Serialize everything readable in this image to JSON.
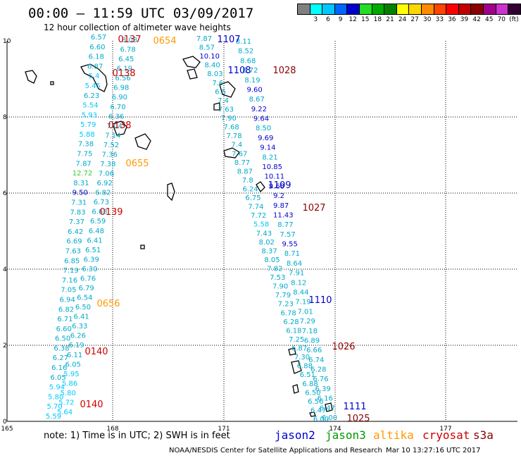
{
  "header": {
    "title": "00:00 – 11:59 UTC 03/09/2017",
    "subtitle": "12 hour collection of altimeter wave heights"
  },
  "scale": {
    "colors": [
      "#808080",
      "#00ffff",
      "#00c8ff",
      "#0066ff",
      "#0000cd",
      "#22dd22",
      "#00aa00",
      "#008000",
      "#ffff00",
      "#ffd700",
      "#ff8c00",
      "#ff4500",
      "#ff0000",
      "#c00000",
      "#8b0000",
      "#a0008a",
      "#cc33cc",
      "#330033",
      "#000000"
    ],
    "labels": [
      "",
      "3",
      "6",
      "9",
      "12",
      "15",
      "18",
      "21",
      "24",
      "27",
      "30",
      "33",
      "36",
      "39",
      "42",
      "45",
      "70",
      "(ft)",
      ""
    ]
  },
  "axes": {
    "x_ticks": [
      "165",
      "168",
      "171",
      "174",
      "177"
    ],
    "y_ticks": [
      "10",
      "8",
      "6",
      "4",
      "2",
      "0"
    ]
  },
  "tracks": [
    {
      "sat": "cryosat",
      "color": "#cc0000",
      "values": [
        "6.57",
        "6.60",
        "6.18",
        "6.87",
        "5.4",
        "5.45",
        "6.23",
        "5.54",
        "5.93",
        "5.79",
        "5.88",
        "7.38",
        "7.75",
        "7.87",
        "12.72",
        "8.31",
        "9.50",
        "7.31",
        "7.83",
        "7.37",
        "6.42",
        "6.69",
        "7.63",
        "6.85",
        "7.19",
        "7.16",
        "7.05",
        "6.94",
        "6.82",
        "6.71",
        "6.60",
        "6.50",
        "6.38",
        "6.27",
        "6.16",
        "6.05",
        "5.94",
        "5.80",
        "5.70",
        "5.59"
      ]
    },
    {
      "sat": "cryosat",
      "color": "#cc0000",
      "values": [
        "8.08",
        "6.78",
        "6.45",
        "6.19",
        "6.56",
        "6.98",
        "6.90",
        "6.70",
        "6.36",
        "7.04",
        "7.14",
        "7.52",
        "7.36",
        "7.38",
        "7.06",
        "6.92",
        "6.82",
        "6.73",
        "6.63",
        "6.59",
        "6.48",
        "6.41",
        "6.51",
        "6.39",
        "6.30",
        "6.76",
        "6.79",
        "6.54",
        "6.50",
        "6.41",
        "6.33",
        "6.26",
        "6.19",
        "6.11",
        "6.05",
        "5.95",
        "5.86",
        "5.80",
        "5.72",
        "5.64"
      ]
    },
    {
      "sat": "jason2",
      "color": "#0000cc",
      "values": [
        "7.87",
        "8.57",
        "10.10",
        "8.40",
        "8.03",
        "7.6",
        "6.5",
        "7.4",
        "7.63",
        "7.90",
        "7.68",
        "7.78",
        "7.4",
        "7.67",
        "8.77",
        "8.87",
        "7.8",
        "6.24",
        "6.75",
        "7.74",
        "7.72",
        "5.58",
        "7.43",
        "8.02",
        "8.37",
        "8.05",
        "7.82",
        "7.53",
        "7.90",
        "7.79",
        "7.23",
        "6.78",
        "6.28",
        "6.18",
        "7.25",
        "6.87",
        "7.30",
        "6.88",
        "6.51",
        "6.88",
        "6.50",
        "6.56",
        "6.47",
        "6.00"
      ]
    },
    {
      "sat": "jason2",
      "color": "#0000cc",
      "values": [
        "8.11",
        "8.52",
        "8.68",
        "8.72",
        "8.19",
        "9.60",
        "8.67",
        "9.22",
        "9.64",
        "8.50",
        "9.69",
        "9.14",
        "8.21",
        "10.85",
        "10.11",
        "9.68",
        "9.2",
        "9.87",
        "11.43",
        "8.77",
        "7.57",
        "9.55",
        "8.71",
        "8.64",
        "7.91",
        "8.12",
        "8.44",
        "7.19",
        "7.01",
        "7.29",
        "7.18",
        "6.89",
        "6.66",
        "6.74",
        "6.28",
        "6.76",
        "6.39",
        "6.16",
        "6.47",
        "6.00"
      ]
    }
  ],
  "pass_labels": [
    {
      "text": "0137",
      "sat": "cryosat",
      "color": "#cc0000"
    },
    {
      "text": "0138",
      "sat": "cryosat",
      "color": "#cc0000"
    },
    {
      "text": "0138",
      "sat": "cryosat",
      "color": "#cc0000"
    },
    {
      "text": "0139",
      "sat": "cryosat",
      "color": "#cc0000"
    },
    {
      "text": "0140",
      "sat": "cryosat",
      "color": "#cc0000"
    },
    {
      "text": "0140",
      "sat": "cryosat",
      "color": "#cc0000"
    },
    {
      "text": "0654",
      "sat": "altika",
      "color": "#ff9900"
    },
    {
      "text": "0655",
      "sat": "altika",
      "color": "#ff9900"
    },
    {
      "text": "0656",
      "sat": "altika",
      "color": "#ff9900"
    },
    {
      "text": "1107",
      "sat": "jason2",
      "color": "#0000cc"
    },
    {
      "text": "1108",
      "sat": "jason2",
      "color": "#0000cc"
    },
    {
      "text": "1109",
      "sat": "jason2",
      "color": "#0000cc"
    },
    {
      "text": "1110",
      "sat": "jason2",
      "color": "#0000cc"
    },
    {
      "text": "1111",
      "sat": "jason2",
      "color": "#0000cc"
    },
    {
      "text": "1028",
      "sat": "s3a",
      "color": "#8b0000"
    },
    {
      "text": "1027",
      "sat": "s3a",
      "color": "#8b0000"
    },
    {
      "text": "1026",
      "sat": "s3a",
      "color": "#8b0000"
    },
    {
      "text": "1025",
      "sat": "s3a",
      "color": "#8b0000"
    }
  ],
  "footer": {
    "note": "note: 1) Time is in UTC; 2) SWH is in feet",
    "credit": "NOAA/NESDIS Center for Satellite Applications and Research",
    "timestamp": "Mar 10 13:27:16 UTC 2017"
  },
  "legend": [
    {
      "label": "jason2",
      "color": "#0000cc"
    },
    {
      "label": "jason3",
      "color": "#009900"
    },
    {
      "label": "altika",
      "color": "#ff9900"
    },
    {
      "label": "cryosat",
      "color": "#cc0000"
    },
    {
      "label": "s3a",
      "color": "#8b0000"
    }
  ]
}
